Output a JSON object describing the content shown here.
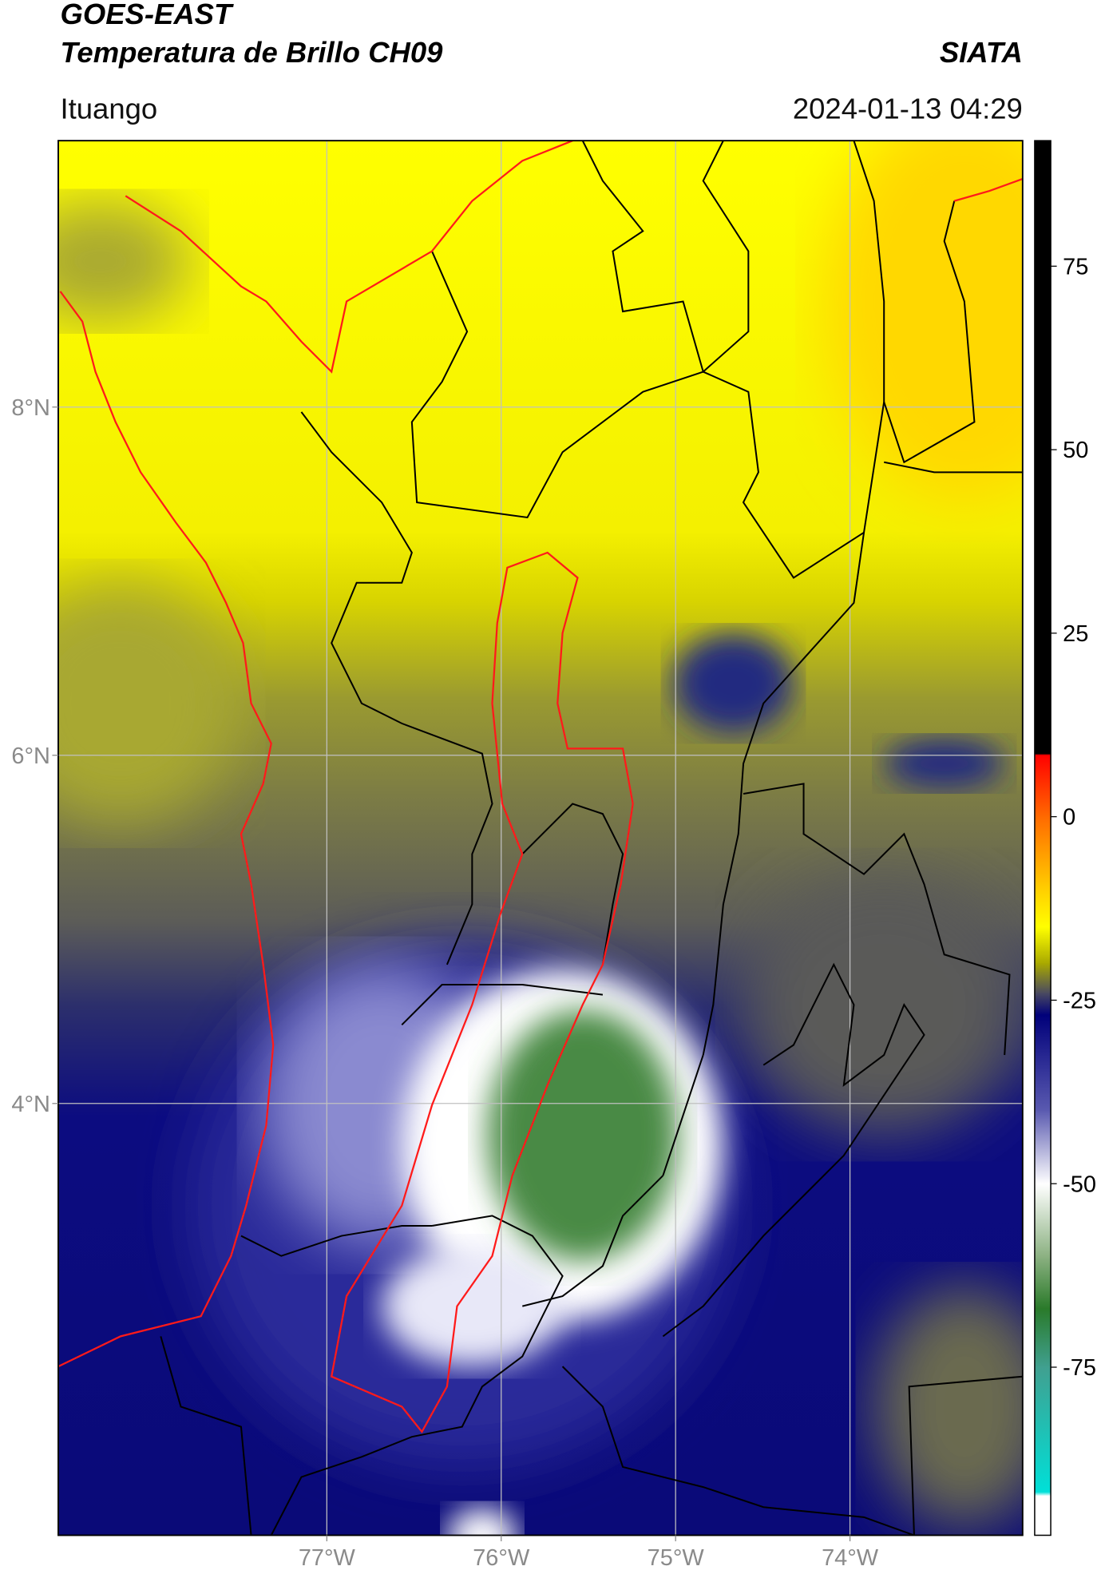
{
  "chart_data": {
    "type": "map",
    "title": "GOES-EAST",
    "subtitle": "Temperatura de Brillo CH09",
    "source": "SIATA",
    "location": "Ituango",
    "datetime": "2024-01-13 04:29",
    "xlim": [
      -78.54,
      -73.01
    ],
    "ylim": [
      1.52,
      9.53
    ],
    "xticks": [
      {
        "value": -77,
        "label": "77°W"
      },
      {
        "value": -76,
        "label": "76°W"
      },
      {
        "value": -75,
        "label": "75°W"
      },
      {
        "value": -74,
        "label": "74°W"
      }
    ],
    "yticks": [
      {
        "value": 8,
        "label": "8°N"
      },
      {
        "value": 6,
        "label": "6°N"
      },
      {
        "value": 4,
        "label": "4°N"
      }
    ],
    "grid": true,
    "colorbar": {
      "lim": [
        -97.9,
        92.1
      ],
      "ticks": [
        75,
        50,
        25,
        0,
        -25,
        -50,
        -75
      ],
      "colors": [
        {
          "value": 92.1,
          "color": "#000000"
        },
        {
          "value": 8.6,
          "color": "#000000"
        },
        {
          "value": 8.4,
          "color": "#ff0000"
        },
        {
          "value": 0,
          "color": "#ff6a00"
        },
        {
          "value": -10,
          "color": "#ffd000"
        },
        {
          "value": -15,
          "color": "#ffff00"
        },
        {
          "value": -20,
          "color": "#a8a800"
        },
        {
          "value": -24,
          "color": "#4a4a60"
        },
        {
          "value": -27,
          "color": "#00007a"
        },
        {
          "value": -40,
          "color": "#5a5ab0"
        },
        {
          "value": -50,
          "color": "#ffffff"
        },
        {
          "value": -60,
          "color": "#8ab080"
        },
        {
          "value": -67,
          "color": "#2a7a2a"
        },
        {
          "value": -75,
          "color": "#40a090"
        },
        {
          "value": -92,
          "color": "#00e0d8"
        },
        {
          "value": -92.5,
          "color": "#ffffff"
        },
        {
          "value": -97.9,
          "color": "#ffffff"
        }
      ]
    }
  }
}
